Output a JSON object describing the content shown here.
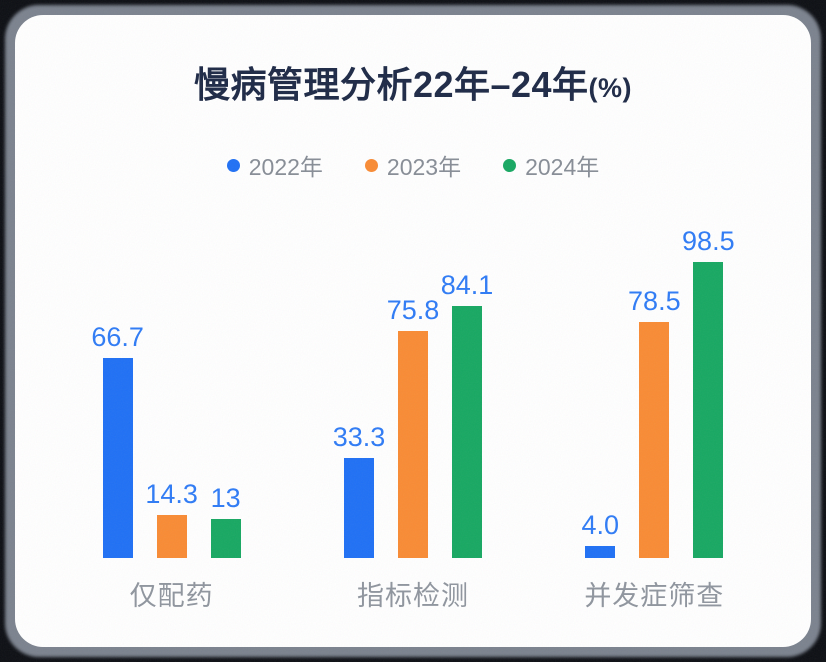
{
  "page": {
    "background_color": "#0c0e13",
    "shadow_ring_color": "#7b828e",
    "card_color": "#ffffff"
  },
  "chart_data": {
    "type": "bar",
    "title": "慢病管理分析22年–24年(%)",
    "title_main": "慢病管理分析22年–24年",
    "title_suffix": "(%)",
    "title_color": "#1d2946",
    "categories": [
      "仅配药",
      "指标检测",
      "并发症筛查"
    ],
    "series": [
      {
        "name": "2022年",
        "color": "#1f70f5",
        "values": [
          66.7,
          33.3,
          4.0
        ],
        "value_labels": [
          "66.7",
          "33.3",
          "4.0"
        ]
      },
      {
        "name": "2023年",
        "color": "#f98b34",
        "values": [
          14.3,
          75.8,
          78.5
        ],
        "value_labels": [
          "14.3",
          "75.8",
          "78.5"
        ]
      },
      {
        "name": "2024年",
        "color": "#17a862",
        "values": [
          13,
          84.1,
          98.5
        ],
        "value_labels": [
          "13",
          "84.1",
          "98.5"
        ]
      }
    ],
    "ylim": [
      0,
      100
    ],
    "grid": false,
    "axes_visible": false,
    "legend_position": "top",
    "value_label_color": "#2e7bf6",
    "category_label_color": "#8f959e",
    "legend_text_color": "#878d96"
  }
}
